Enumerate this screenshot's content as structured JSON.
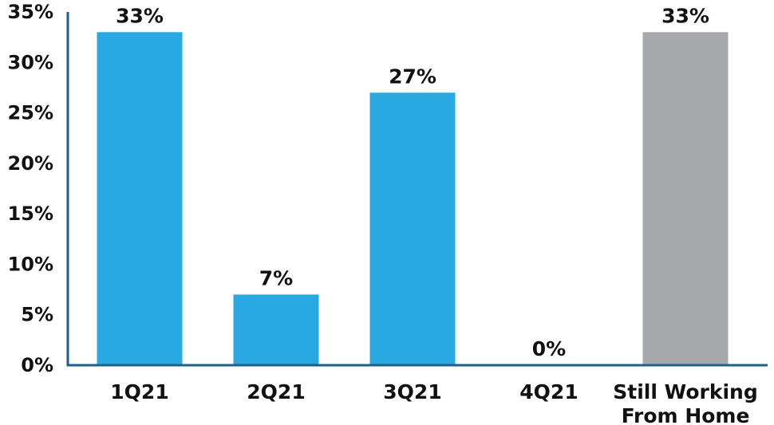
{
  "chart_data": {
    "type": "bar",
    "categories": [
      "1Q21",
      "2Q21",
      "3Q21",
      "4Q21",
      "Still Working From Home"
    ],
    "category_lines": [
      [
        "1Q21"
      ],
      [
        "2Q21"
      ],
      [
        "3Q21"
      ],
      [
        "4Q21"
      ],
      [
        "Still Working",
        "From Home"
      ]
    ],
    "values": [
      33,
      7,
      27,
      0,
      33
    ],
    "data_labels": [
      "33%",
      "7%",
      "27%",
      "0%",
      "33%"
    ],
    "bar_colors": [
      "#29a9e1",
      "#29a9e1",
      "#29a9e1",
      "#29a9e1",
      "#a7a8ab"
    ],
    "ylim": [
      0,
      35
    ],
    "yticks": [
      0,
      5,
      10,
      15,
      20,
      25,
      30,
      35
    ],
    "ytick_labels": [
      "0%",
      "5%",
      "10%",
      "15%",
      "20%",
      "25%",
      "30%",
      "35%"
    ],
    "title": "",
    "xlabel": "",
    "ylabel": "",
    "grid": false,
    "legend": false,
    "axis_color": "#1f5f8b"
  }
}
